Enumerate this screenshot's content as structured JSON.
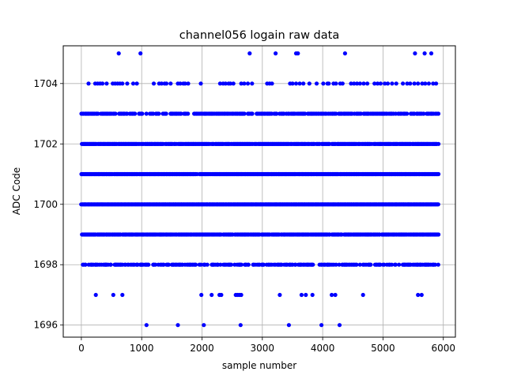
{
  "chart_data": {
    "type": "scatter",
    "title": "channel056 logain raw data",
    "xlabel": "sample number",
    "ylabel": "ADC Code",
    "xlim": [
      -300,
      6200
    ],
    "ylim": [
      1695.6,
      1705.25
    ],
    "xticks": [
      0,
      1000,
      2000,
      3000,
      4000,
      5000,
      6000
    ],
    "yticks": [
      1696,
      1698,
      1700,
      1702,
      1704
    ],
    "grid": true,
    "marker_color": "#0000ff",
    "x_range": [
      0,
      5920
    ],
    "levels": [
      {
        "y": 1700,
        "x": [],
        "density": 1.0
      },
      {
        "y": 1701,
        "x": [],
        "density": 0.95
      },
      {
        "y": 1702,
        "x": [],
        "density": 0.9
      },
      {
        "y": 1699,
        "x": [],
        "density": 0.85
      },
      {
        "y": 1703,
        "x": [],
        "density": 0.6
      },
      {
        "y": 1698,
        "x": [],
        "density": 0.55
      },
      {
        "y": 1704,
        "x": [
          120,
          230,
          270,
          310,
          350,
          420,
          520,
          560,
          600,
          640,
          680,
          760,
          860,
          920,
          1200,
          1290,
          1330,
          1380,
          1410,
          1480,
          1600,
          1640,
          1690,
          1720,
          1770,
          1980,
          2300,
          2350,
          2390,
          2440,
          2470,
          2520,
          2650,
          2700,
          2760,
          2830,
          3080,
          3120,
          3160,
          3460,
          3500,
          3560,
          3620,
          3680,
          3780,
          3900,
          4010,
          4080,
          4100,
          4180,
          4220,
          4290,
          4330,
          4470,
          4520,
          4570,
          4620,
          4680,
          4740,
          4860,
          4910,
          4960,
          5030,
          5080,
          5150,
          5220,
          5330,
          5400,
          5450,
          5520,
          5580,
          5650,
          5700,
          5760,
          5830,
          5880
        ]
      },
      {
        "y": 1705,
        "x": [
          620,
          980,
          2790,
          3220,
          3560,
          3590,
          4370,
          5530,
          5690,
          5800
        ]
      },
      {
        "y": 1697,
        "x": [
          240,
          530,
          680,
          1990,
          2160,
          2290,
          2320,
          2560,
          2590,
          2620,
          2650,
          3290,
          3650,
          3720,
          3830,
          4150,
          4210,
          4670,
          5580,
          5640
        ]
      },
      {
        "y": 1696,
        "x": [
          1080,
          1600,
          2030,
          2640,
          3440,
          3980,
          4280
        ]
      }
    ]
  }
}
